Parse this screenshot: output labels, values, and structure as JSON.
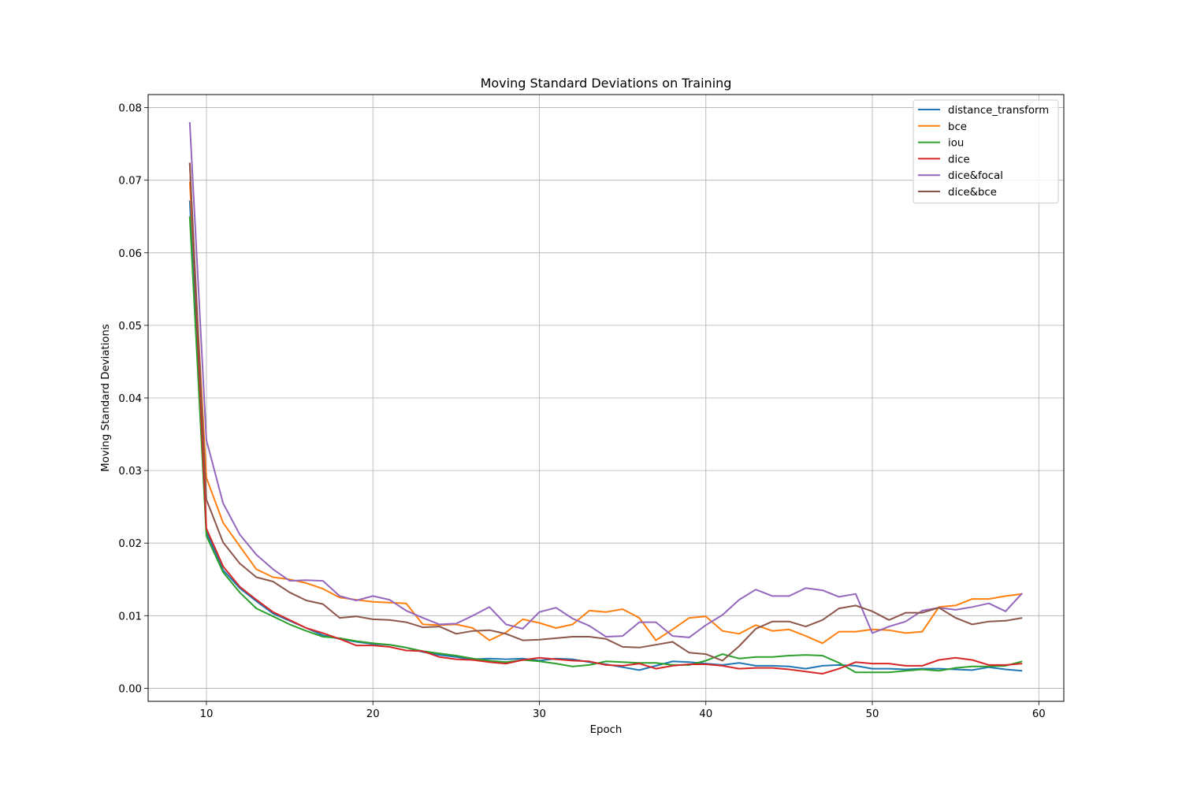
{
  "chart_data": {
    "type": "line",
    "title": "Moving Standard Deviations on Training",
    "xlabel": "Epoch",
    "ylabel": "Moving Standard Deviations",
    "xlim": [
      6.5,
      61.5
    ],
    "ylim": [
      -0.0018,
      0.0818
    ],
    "xticks": [
      10,
      20,
      30,
      40,
      50,
      60
    ],
    "xtick_labels": [
      "10",
      "20",
      "30",
      "40",
      "50",
      "60"
    ],
    "yticks": [
      0.0,
      0.01,
      0.02,
      0.03,
      0.04,
      0.05,
      0.06,
      0.07,
      0.08
    ],
    "ytick_labels": [
      "0.00",
      "0.01",
      "0.02",
      "0.03",
      "0.04",
      "0.05",
      "0.06",
      "0.07",
      "0.08"
    ],
    "grid": true,
    "legend_position": "top-right",
    "x": [
      9,
      10,
      11,
      12,
      13,
      14,
      15,
      16,
      17,
      18,
      19,
      20,
      21,
      22,
      23,
      24,
      25,
      26,
      27,
      28,
      29,
      30,
      31,
      32,
      33,
      34,
      35,
      36,
      37,
      38,
      39,
      40,
      41,
      42,
      43,
      44,
      45,
      46,
      47,
      48,
      49,
      50,
      51,
      52,
      53,
      54,
      55,
      56,
      57,
      58,
      59
    ],
    "series": [
      {
        "name": "distance_transform",
        "color": "#1f77b4",
        "values": [
          0.0672,
          0.0215,
          0.0163,
          0.0138,
          0.012,
          0.0103,
          0.0093,
          0.0083,
          0.0073,
          0.0068,
          0.0064,
          0.0061,
          0.006,
          0.0056,
          0.005,
          0.0046,
          0.0043,
          0.004,
          0.0041,
          0.004,
          0.0041,
          0.0038,
          0.0041,
          0.004,
          0.0036,
          0.0033,
          0.0029,
          0.0025,
          0.0031,
          0.0037,
          0.0036,
          0.0034,
          0.0032,
          0.0035,
          0.0031,
          0.0031,
          0.003,
          0.0027,
          0.0031,
          0.0032,
          0.0031,
          0.0027,
          0.0027,
          0.0026,
          0.0027,
          0.0027,
          0.0026,
          0.0025,
          0.0029,
          0.0026,
          0.0024
        ]
      },
      {
        "name": "bce",
        "color": "#ff7f0e",
        "values": [
          0.0698,
          0.029,
          0.0228,
          0.0196,
          0.0164,
          0.0153,
          0.015,
          0.0145,
          0.0137,
          0.0125,
          0.0122,
          0.0119,
          0.0118,
          0.0117,
          0.0088,
          0.0087,
          0.0088,
          0.0083,
          0.0066,
          0.0077,
          0.0095,
          0.009,
          0.0083,
          0.0088,
          0.0107,
          0.0105,
          0.0109,
          0.0097,
          0.0066,
          0.0081,
          0.0097,
          0.0099,
          0.0079,
          0.0075,
          0.0087,
          0.0079,
          0.0081,
          0.0072,
          0.0062,
          0.0078,
          0.0078,
          0.0081,
          0.008,
          0.0076,
          0.0078,
          0.0112,
          0.0114,
          0.0123,
          0.0123,
          0.0127,
          0.013
        ]
      },
      {
        "name": "iou",
        "color": "#2ca02c",
        "values": [
          0.065,
          0.021,
          0.016,
          0.0132,
          0.011,
          0.0099,
          0.0088,
          0.0079,
          0.0071,
          0.0069,
          0.0065,
          0.0062,
          0.006,
          0.0056,
          0.0051,
          0.0048,
          0.0045,
          0.0041,
          0.0038,
          0.0036,
          0.0039,
          0.0037,
          0.0034,
          0.003,
          0.0032,
          0.0037,
          0.0036,
          0.0035,
          0.0035,
          0.0032,
          0.0032,
          0.0038,
          0.0047,
          0.0041,
          0.0043,
          0.0043,
          0.0045,
          0.0046,
          0.0045,
          0.0035,
          0.0022,
          0.0022,
          0.0022,
          0.0024,
          0.0026,
          0.0024,
          0.0028,
          0.003,
          0.003,
          0.0031,
          0.0037
        ]
      },
      {
        "name": "dice",
        "color": "#d62728",
        "values": [
          0.0724,
          0.022,
          0.0168,
          0.014,
          0.0122,
          0.0105,
          0.0094,
          0.0083,
          0.0076,
          0.0068,
          0.0059,
          0.0059,
          0.0057,
          0.0052,
          0.0051,
          0.0043,
          0.004,
          0.0039,
          0.0036,
          0.0034,
          0.0039,
          0.0042,
          0.004,
          0.0038,
          0.0037,
          0.0032,
          0.0031,
          0.0034,
          0.0027,
          0.0031,
          0.0033,
          0.0033,
          0.0031,
          0.0027,
          0.0028,
          0.0028,
          0.0026,
          0.0023,
          0.002,
          0.0027,
          0.0036,
          0.0034,
          0.0034,
          0.0031,
          0.0031,
          0.0039,
          0.0042,
          0.0039,
          0.0032,
          0.0032,
          0.0034
        ]
      },
      {
        "name": "dice&focal",
        "color": "#9467bd",
        "values": [
          0.078,
          0.0342,
          0.0255,
          0.0212,
          0.0184,
          0.0164,
          0.0148,
          0.0149,
          0.0148,
          0.0127,
          0.0121,
          0.0127,
          0.0122,
          0.0107,
          0.0097,
          0.0088,
          0.0089,
          0.01,
          0.0112,
          0.0088,
          0.0082,
          0.0105,
          0.0111,
          0.0096,
          0.0086,
          0.0071,
          0.0072,
          0.0091,
          0.0091,
          0.0072,
          0.007,
          0.0087,
          0.0101,
          0.0122,
          0.0136,
          0.0127,
          0.0127,
          0.0138,
          0.0135,
          0.0126,
          0.013,
          0.0076,
          0.0085,
          0.0092,
          0.0107,
          0.0111,
          0.0108,
          0.0112,
          0.0117,
          0.0106,
          0.0131
        ]
      },
      {
        "name": "dice&bce",
        "color": "#8c564b",
        "values": [
          0.0724,
          0.026,
          0.0201,
          0.0172,
          0.0153,
          0.0147,
          0.0132,
          0.0121,
          0.0116,
          0.0097,
          0.0099,
          0.0095,
          0.0094,
          0.0091,
          0.0084,
          0.0085,
          0.0075,
          0.0079,
          0.008,
          0.0075,
          0.0066,
          0.0067,
          0.0069,
          0.0071,
          0.0071,
          0.0068,
          0.0057,
          0.0056,
          0.006,
          0.0064,
          0.0049,
          0.0047,
          0.0038,
          0.0058,
          0.0082,
          0.0092,
          0.0092,
          0.0085,
          0.0094,
          0.011,
          0.0114,
          0.0106,
          0.0094,
          0.0104,
          0.0104,
          0.0111,
          0.0097,
          0.0088,
          0.0092,
          0.0093,
          0.0097
        ]
      }
    ]
  }
}
